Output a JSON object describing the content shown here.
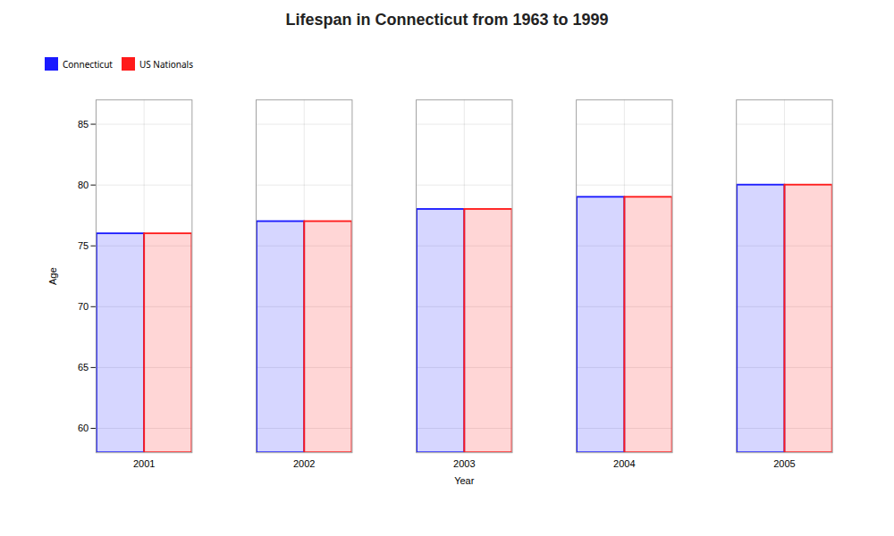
{
  "chart_data": {
    "type": "bar",
    "title": "Lifespan in Connecticut from 1963 to 1999",
    "xlabel": "Year",
    "ylabel": "Age",
    "categories": [
      "2001",
      "2002",
      "2003",
      "2004",
      "2005"
    ],
    "series": [
      {
        "name": "Connecticut",
        "color": "#1a1aff",
        "values": [
          76,
          77,
          78,
          79,
          80
        ]
      },
      {
        "name": "US Nationals",
        "color": "#ff1a1a",
        "values": [
          76,
          77,
          78,
          79,
          80
        ]
      }
    ],
    "ylim": [
      58,
      87
    ],
    "yticks": [
      60,
      65,
      70,
      75,
      80,
      85
    ],
    "grid": true,
    "legend": "top"
  }
}
